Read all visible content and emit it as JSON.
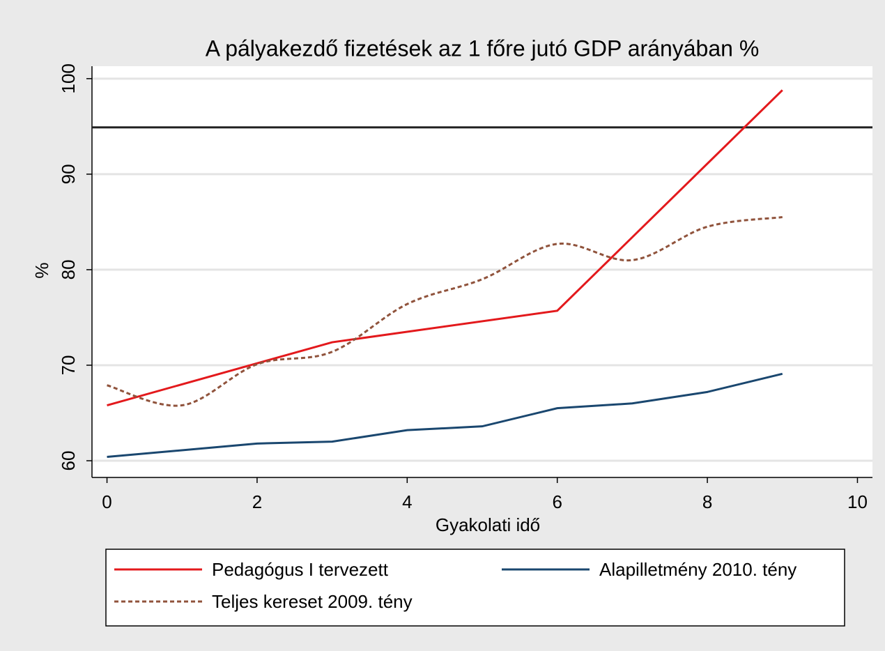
{
  "chart_data": {
    "type": "line",
    "title": "A pályakezdő fizetések az 1 főre jutó GDP arányában %",
    "x_label": "Gyakolati idő",
    "y_label": "%",
    "xlim": [
      -0.2,
      10.2
    ],
    "ylim": [
      58.25,
      101.3
    ],
    "xticks": [
      0,
      2,
      4,
      6,
      8,
      10
    ],
    "yticks": [
      60,
      70,
      80,
      90,
      100
    ],
    "grid": true,
    "reference_line": 94.9,
    "reference_color": "#222222",
    "legend": "bottom",
    "series": [
      {
        "name": "Pedagógus I tervezett",
        "color": "#e3191c",
        "style": "solid",
        "x": [
          0,
          3,
          6,
          9
        ],
        "values": [
          65.8,
          72.4,
          75.7,
          98.8
        ]
      },
      {
        "name": "Alapilletmény 2010. tény",
        "color": "#1a476f",
        "style": "solid",
        "x": [
          0,
          2,
          3,
          4,
          5,
          6,
          7,
          8,
          9
        ],
        "values": [
          60.4,
          61.8,
          62.0,
          63.2,
          63.6,
          65.5,
          66.0,
          67.2,
          69.1
        ]
      },
      {
        "name": "Teljes kereset 2009. tény",
        "color": "#90533c",
        "style": "dashed",
        "x": [
          0,
          1,
          2,
          3,
          4,
          5,
          6,
          7,
          8,
          9
        ],
        "values": [
          67.9,
          65.8,
          70.1,
          71.4,
          76.4,
          79.0,
          82.7,
          81.0,
          84.5,
          85.5
        ]
      }
    ]
  }
}
